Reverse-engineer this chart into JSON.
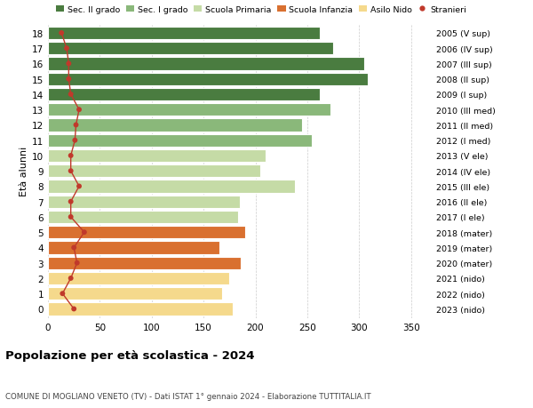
{
  "ages": [
    18,
    17,
    16,
    15,
    14,
    13,
    12,
    11,
    10,
    9,
    8,
    7,
    6,
    5,
    4,
    3,
    2,
    1,
    0
  ],
  "anni_nascita": [
    "2005 (V sup)",
    "2006 (IV sup)",
    "2007 (III sup)",
    "2008 (II sup)",
    "2009 (I sup)",
    "2010 (III med)",
    "2011 (II med)",
    "2012 (I med)",
    "2013 (V ele)",
    "2014 (IV ele)",
    "2015 (III ele)",
    "2016 (II ele)",
    "2017 (I ele)",
    "2018 (mater)",
    "2019 (mater)",
    "2020 (mater)",
    "2021 (nido)",
    "2022 (nido)",
    "2023 (nido)"
  ],
  "bar_values": [
    262,
    275,
    305,
    308,
    262,
    272,
    245,
    254,
    210,
    205,
    238,
    185,
    183,
    190,
    165,
    186,
    175,
    168,
    178
  ],
  "bar_colors": [
    "#4a7c40",
    "#4a7c40",
    "#4a7c40",
    "#4a7c40",
    "#4a7c40",
    "#8ab87a",
    "#8ab87a",
    "#8ab87a",
    "#c5dba6",
    "#c5dba6",
    "#c5dba6",
    "#c5dba6",
    "#c5dba6",
    "#d97030",
    "#d97030",
    "#d97030",
    "#f5d98c",
    "#f5d98c",
    "#f5d98c"
  ],
  "stranieri_values": [
    13,
    18,
    20,
    20,
    22,
    30,
    27,
    26,
    22,
    22,
    30,
    22,
    22,
    35,
    25,
    28,
    22,
    14,
    25
  ],
  "xlim": [
    0,
    370
  ],
  "xticks": [
    0,
    50,
    100,
    150,
    200,
    250,
    300,
    350
  ],
  "title": "Popolazione per età scolastica - 2024",
  "subtitle": "COMUNE DI MOGLIANO VENETO (TV) - Dati ISTAT 1° gennaio 2024 - Elaborazione TUTTITALIA.IT",
  "ylabel": "Età alunni",
  "legend_labels": [
    "Sec. II grado",
    "Sec. I grado",
    "Scuola Primaria",
    "Scuola Infanzia",
    "Asilo Nido",
    "Stranieri"
  ],
  "legend_colors": [
    "#4a7c40",
    "#8ab87a",
    "#c5dba6",
    "#d97030",
    "#f5d98c",
    "#c0392b"
  ],
  "stranieri_color": "#c0392b",
  "bg_color": "#ffffff",
  "grid_color": "#cccccc"
}
